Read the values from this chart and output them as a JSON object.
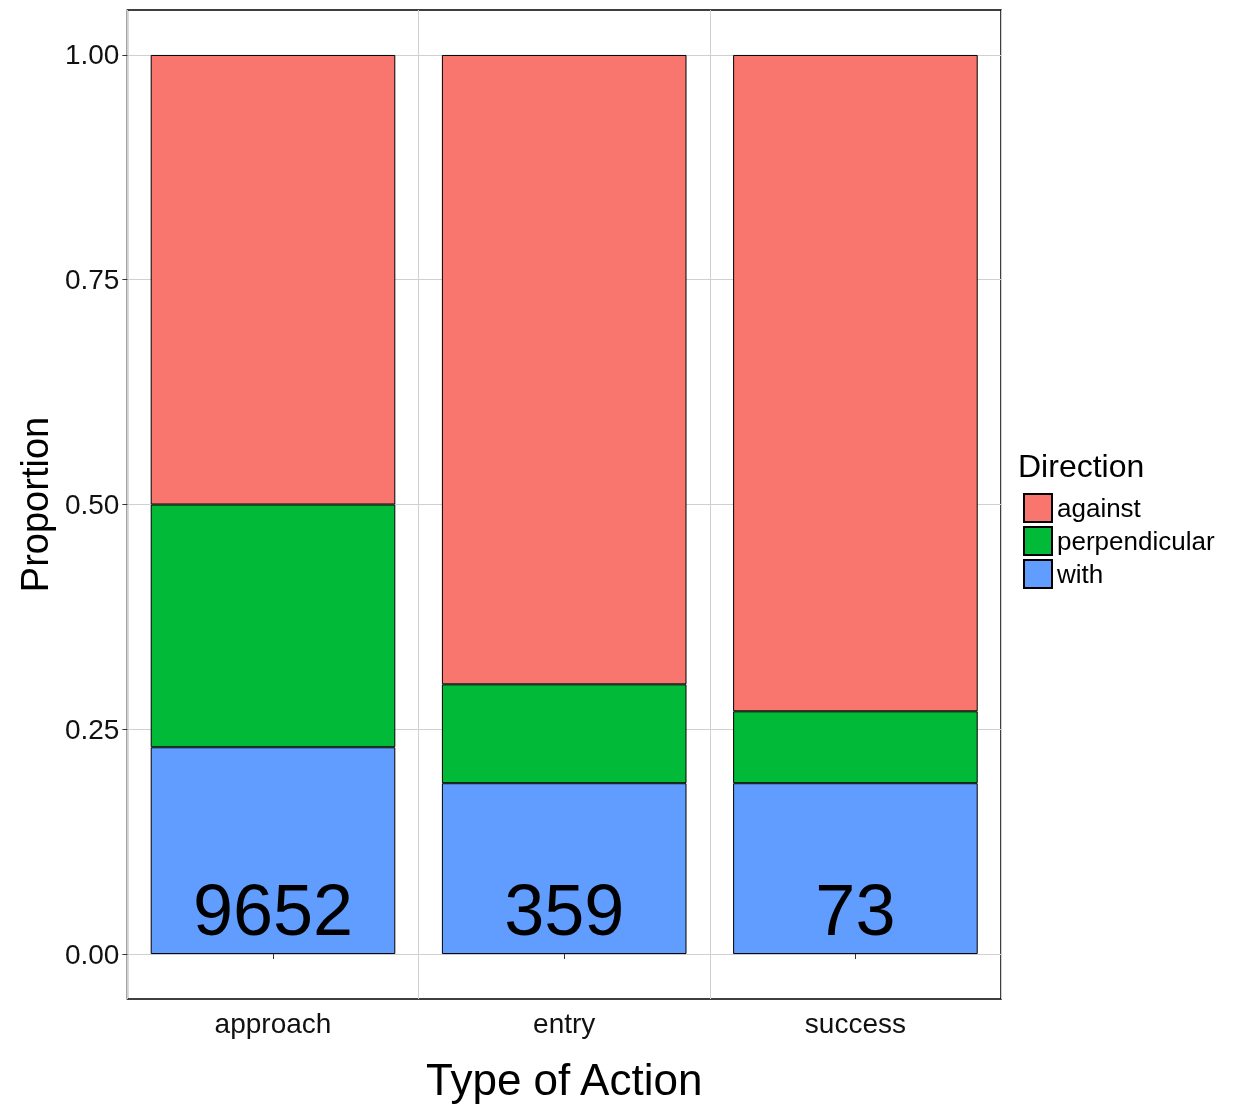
{
  "chart_data": {
    "type": "bar",
    "stacked": true,
    "xlabel": "Type of Action",
    "ylabel": "Proportion",
    "legend_title": "Direction",
    "legend": "right",
    "categories": [
      "approach",
      "entry",
      "success"
    ],
    "series": [
      {
        "name": "with",
        "color": "#619cff",
        "values": [
          0.23,
          0.19,
          0.19
        ]
      },
      {
        "name": "perpendicular",
        "color": "#00ba38",
        "values": [
          0.27,
          0.11,
          0.08
        ]
      },
      {
        "name": "against",
        "color": "#f8766d",
        "values": [
          0.5,
          0.7,
          0.73
        ]
      }
    ],
    "ylim": [
      -0.05,
      1.05
    ],
    "yticks": [
      {
        "value": 0,
        "label": "0.00"
      },
      {
        "value": 0.25,
        "label": "0.25"
      },
      {
        "value": 0.5,
        "label": "0.50"
      },
      {
        "value": 0.75,
        "label": "0.75"
      },
      {
        "value": 1,
        "label": "1.00"
      }
    ],
    "grid": true,
    "annotations": [
      "9652",
      "359",
      "73"
    ]
  }
}
